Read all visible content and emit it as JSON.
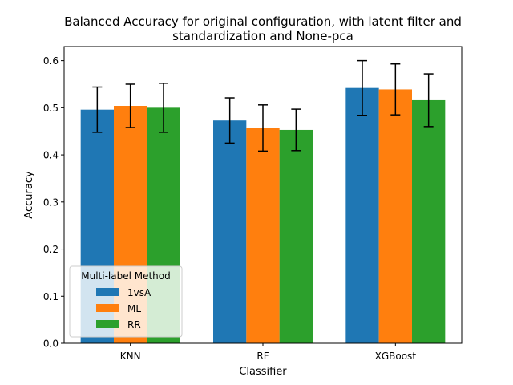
{
  "chart_data": {
    "type": "bar",
    "title": "Balanced Accuracy for original configuration, with latent filter and standardization and None-pca",
    "title_lines": [
      "Balanced Accuracy for original configuration, with latent filter and",
      "standardization and None-pca"
    ],
    "xlabel": "Classifier",
    "ylabel": "Accuracy",
    "categories": [
      "KNN",
      "RF",
      "XGBoost"
    ],
    "ylim": [
      0,
      0.63
    ],
    "yticks": [
      0.0,
      0.1,
      0.2,
      0.3,
      0.4,
      0.5,
      0.6
    ],
    "ytick_labels": [
      "0.0",
      "0.1",
      "0.2",
      "0.3",
      "0.4",
      "0.5",
      "0.6"
    ],
    "grid": false,
    "legend": {
      "title": "Multi-label Method",
      "placement": "lower-left"
    },
    "series": [
      {
        "name": "1vsA",
        "color": "#1f77b4",
        "values": [
          0.496,
          0.473,
          0.542
        ],
        "errors": [
          0.048,
          0.048,
          0.058
        ]
      },
      {
        "name": "ML",
        "color": "#ff7f0e",
        "values": [
          0.504,
          0.457,
          0.539
        ],
        "errors": [
          0.046,
          0.049,
          0.054
        ]
      },
      {
        "name": "RR",
        "color": "#2ca02c",
        "values": [
          0.5,
          0.453,
          0.516
        ],
        "errors": [
          0.052,
          0.044,
          0.056
        ]
      }
    ]
  }
}
